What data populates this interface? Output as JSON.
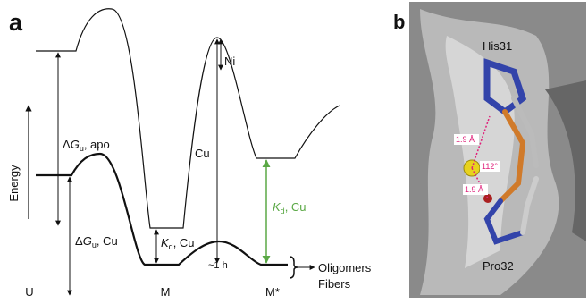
{
  "panel_a": {
    "label": "a",
    "axis_label": "Energy",
    "dg_apo": {
      "prefix": "Δ",
      "symbol": "G",
      "subscript": "u",
      "suffix": ", apo"
    },
    "dg_cu": {
      "prefix": "Δ",
      "symbol": "G",
      "subscript": "u",
      "suffix": ", Cu"
    },
    "kd_cu_m": {
      "symbol": "K",
      "subscript": "d",
      "suffix": ", Cu"
    },
    "kd_cu_mstar": {
      "symbol": "K",
      "subscript": "d",
      "suffix": ", Cu"
    },
    "ni": "Ni",
    "cu": "Cu",
    "time": "~1 h",
    "products": [
      "Oligomers",
      "Fibers"
    ],
    "states": [
      "U",
      "M",
      "M*"
    ]
  },
  "panel_b": {
    "label": "b",
    "residues": [
      "His31",
      "Pro32"
    ],
    "distances": [
      "1.9 Å",
      "1.9 Å"
    ],
    "angle": "112°"
  }
}
